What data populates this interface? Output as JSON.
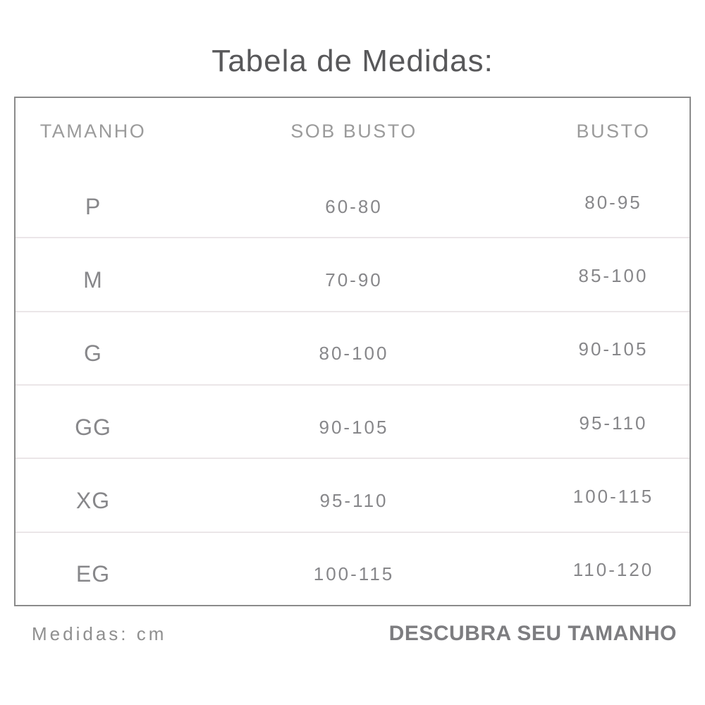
{
  "chart_data": {
    "type": "table",
    "title": "Tabela de Medidas:",
    "columns": [
      "TAMANHO",
      "SOB BUSTO",
      "BUSTO"
    ],
    "rows": [
      [
        "P",
        "60-80",
        "80-95"
      ],
      [
        "M",
        "70-90",
        "85-100"
      ],
      [
        "G",
        "80-100",
        "90-105"
      ],
      [
        "GG",
        "90-105",
        "95-110"
      ],
      [
        "XG",
        "95-110",
        "100-115"
      ],
      [
        "EG",
        "100-115",
        "110-120"
      ]
    ],
    "units_note": "Medidas: cm",
    "footer_cta": "DESCUBRA SEU TAMANHO"
  },
  "colors": {
    "background": "#ffffff",
    "title_text": "#58585a",
    "header_text": "#9b9b9b",
    "value_text": "#87878a",
    "table_border": "#8b8b8b",
    "row_divider": "#ebe6e8",
    "note_text": "#8f8f8f",
    "cta_text": "#7d7d80"
  }
}
